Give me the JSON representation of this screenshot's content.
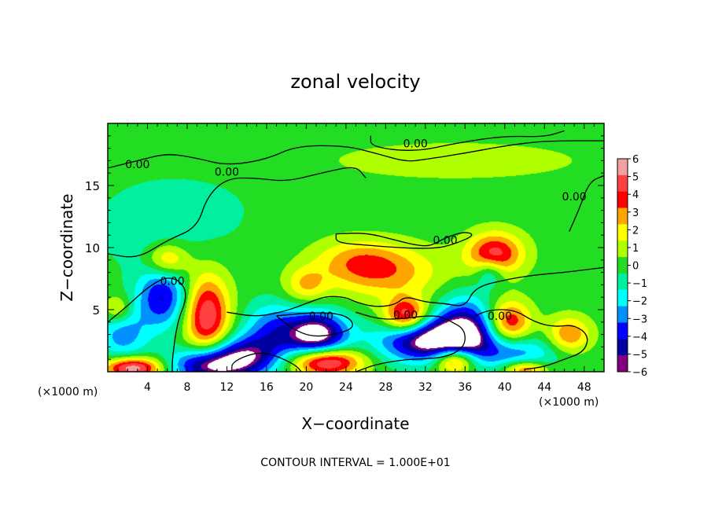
{
  "chart_data": {
    "type": "heatmap",
    "title": "zonal velocity",
    "xlabel": "X−coordinate",
    "ylabel": "Z−coordinate",
    "x_unit_left": "(×1000 m)",
    "x_unit_right": "(×1000 m)",
    "footer": "CONTOUR INTERVAL = 1.000E+01",
    "xlim": [
      0,
      50
    ],
    "ylim": [
      0,
      20
    ],
    "x_ticks": [
      4,
      8,
      12,
      16,
      20,
      24,
      28,
      32,
      36,
      40,
      44,
      48
    ],
    "x_tick_labels": [
      "4",
      "8",
      "12",
      "16",
      "20",
      "24",
      "28",
      "32",
      "36",
      "40",
      "44",
      "48"
    ],
    "y_ticks": [
      5,
      10,
      15
    ],
    "y_tick_labels": [
      "5",
      "10",
      "15"
    ],
    "colorbar": {
      "min": -6,
      "max": 6,
      "levels": [
        6,
        5,
        4,
        3,
        2,
        1,
        0,
        -1,
        -2,
        -3,
        -4,
        -5,
        -6
      ],
      "labels": [
        "6",
        "5",
        "4",
        "3",
        "2",
        "1",
        "0",
        "−1",
        "−2",
        "−3",
        "−4",
        "−5",
        "−6"
      ],
      "colors": [
        "#f4a0a0",
        "#ff4040",
        "#ff0000",
        "#ffa500",
        "#ffff00",
        "#b0ff00",
        "#22dd22",
        "#00f0a0",
        "#00ffff",
        "#0090ff",
        "#0000ff",
        "#0000a0",
        "#800080"
      ]
    },
    "contour_labels": [
      {
        "text": "0.00",
        "x": 3.0,
        "y": 16.7
      },
      {
        "text": "0.00",
        "x": 12.0,
        "y": 16.1
      },
      {
        "text": "0.00",
        "x": 31.0,
        "y": 18.4
      },
      {
        "text": "0.00",
        "x": 47.0,
        "y": 14.1
      },
      {
        "text": "0.00",
        "x": 34.0,
        "y": 10.6
      },
      {
        "text": "0.00",
        "x": 6.5,
        "y": 7.3
      },
      {
        "text": "0.00",
        "x": 21.5,
        "y": 4.5
      },
      {
        "text": "0.00",
        "x": 30.0,
        "y": 4.6
      },
      {
        "text": "0.00",
        "x": 39.5,
        "y": 4.5
      }
    ],
    "field_features": [
      {
        "v": -1.0,
        "x": 4.0,
        "y": 11.5,
        "sx": 4.0,
        "sy": 2.5
      },
      {
        "v": -0.6,
        "x": 10.0,
        "y": 13.0,
        "sx": 5.0,
        "sy": 2.5
      },
      {
        "v": -4.5,
        "x": 5.5,
        "y": 6.0,
        "sx": 1.8,
        "sy": 1.8
      },
      {
        "v": 3.5,
        "x": 6.0,
        "y": 9.0,
        "sx": 1.5,
        "sy": 1.0
      },
      {
        "v": -3.0,
        "x": 1.5,
        "y": 3.0,
        "sx": 1.8,
        "sy": 1.5
      },
      {
        "v": 2.5,
        "x": 1.0,
        "y": 5.0,
        "sx": 1.0,
        "sy": 0.8
      },
      {
        "v": 5.5,
        "x": 10.0,
        "y": 4.5,
        "sx": 1.6,
        "sy": 2.3
      },
      {
        "v": 6.5,
        "x": 2.5,
        "y": 0.3,
        "sx": 2.0,
        "sy": 0.6
      },
      {
        "v": -6.0,
        "x": 10.0,
        "y": 0.5,
        "sx": 2.5,
        "sy": 1.0
      },
      {
        "v": -5.0,
        "x": 14.0,
        "y": 1.2,
        "sx": 2.5,
        "sy": 1.2
      },
      {
        "v": -7.0,
        "x": 21.0,
        "y": 3.0,
        "sx": 2.2,
        "sy": 1.3
      },
      {
        "v": -3.0,
        "x": 16.5,
        "y": 3.5,
        "sx": 2.0,
        "sy": 1.5
      },
      {
        "v": 6.5,
        "x": 22.0,
        "y": 0.8,
        "sx": 2.5,
        "sy": 0.8
      },
      {
        "v": 3.0,
        "x": 28.0,
        "y": 8.0,
        "sx": 4.0,
        "sy": 1.5
      },
      {
        "v": 2.0,
        "x": 25.0,
        "y": 9.0,
        "sx": 3.0,
        "sy": 1.2
      },
      {
        "v": 2.5,
        "x": 20.0,
        "y": 7.0,
        "sx": 1.5,
        "sy": 1.0
      },
      {
        "v": -7.0,
        "x": 32.5,
        "y": 2.5,
        "sx": 3.5,
        "sy": 1.2
      },
      {
        "v": 5.5,
        "x": 30.0,
        "y": 4.5,
        "sx": 1.5,
        "sy": 1.0
      },
      {
        "v": -5.0,
        "x": 36.0,
        "y": 3.5,
        "sx": 2.0,
        "sy": 1.8
      },
      {
        "v": 5.0,
        "x": 39.0,
        "y": 9.5,
        "sx": 2.0,
        "sy": 1.2
      },
      {
        "v": 4.5,
        "x": 40.5,
        "y": 4.0,
        "sx": 1.5,
        "sy": 1.2
      },
      {
        "v": 3.5,
        "x": 46.5,
        "y": 3.0,
        "sx": 1.5,
        "sy": 1.0
      },
      {
        "v": 6.0,
        "x": 35.0,
        "y": 1.0,
        "sx": 1.5,
        "sy": 0.8
      },
      {
        "v": -3.0,
        "x": 41.0,
        "y": 1.5,
        "sx": 3.0,
        "sy": 1.0
      },
      {
        "v": -2.5,
        "x": 38.5,
        "y": 8.0,
        "sx": 1.0,
        "sy": 0.8
      },
      {
        "v": 4.0,
        "x": 42.0,
        "y": 0.2,
        "sx": 1.5,
        "sy": 0.5
      },
      {
        "v": 1.0,
        "x": 35.0,
        "y": 17.0,
        "sx": 10.0,
        "sy": 1.2
      }
    ],
    "zero_contours": [
      [
        [
          0,
          16.4
        ],
        [
          3,
          17.0
        ],
        [
          6,
          17.6
        ],
        [
          9,
          17.2
        ],
        [
          12,
          16.6
        ],
        [
          16,
          17.1
        ],
        [
          19,
          18.2
        ],
        [
          24,
          18.2
        ],
        [
          27,
          17.6
        ],
        [
          30,
          16.9
        ],
        [
          32,
          17.1
        ],
        [
          36,
          17.6
        ],
        [
          40,
          18.2
        ],
        [
          44,
          18.6
        ],
        [
          50,
          18.6
        ]
      ],
      [
        [
          0,
          9.5
        ],
        [
          3,
          9.1
        ],
        [
          6,
          10.6
        ],
        [
          9,
          11.6
        ],
        [
          10,
          14.1
        ],
        [
          12,
          15.6
        ],
        [
          15,
          15.6
        ],
        [
          18,
          15.3
        ],
        [
          22,
          16.1
        ],
        [
          25,
          16.6
        ],
        [
          26,
          15.6
        ]
      ],
      [
        [
          26.5,
          19.0
        ],
        [
          26.5,
          18.1
        ],
        [
          31,
          17.7
        ],
        [
          35,
          18.4
        ],
        [
          40,
          19.0
        ],
        [
          44,
          18.9
        ],
        [
          46,
          19.4
        ]
      ],
      [
        [
          46.5,
          11.3
        ],
        [
          47.5,
          13.1
        ],
        [
          48.5,
          15.3
        ],
        [
          50,
          15.8
        ]
      ],
      [
        [
          23,
          11.1
        ],
        [
          26,
          11.2
        ],
        [
          29,
          10.6
        ],
        [
          31,
          10.2
        ],
        [
          32.5,
          10.1
        ],
        [
          34,
          10.8
        ],
        [
          36,
          11.3
        ],
        [
          37,
          11.0
        ],
        [
          35,
          10.3
        ],
        [
          33,
          9.9
        ],
        [
          29,
          10.0
        ],
        [
          26,
          10.2
        ],
        [
          23,
          10.4
        ],
        [
          23,
          11.1
        ]
      ],
      [
        [
          0,
          4.0
        ],
        [
          2,
          5.3
        ],
        [
          4,
          6.8
        ],
        [
          6,
          7.7
        ],
        [
          7.5,
          7.2
        ],
        [
          8,
          6.0
        ],
        [
          7,
          4.0
        ],
        [
          6.5,
          1.0
        ],
        [
          6.5,
          0
        ]
      ],
      [
        [
          12,
          4.8
        ],
        [
          15,
          4.4
        ],
        [
          18,
          4.9
        ],
        [
          20,
          5.5
        ],
        [
          22,
          6.1
        ],
        [
          24,
          6.0
        ],
        [
          25,
          5.6
        ],
        [
          27,
          5.2
        ],
        [
          29,
          5.4
        ],
        [
          30,
          6.1
        ],
        [
          32,
          5.6
        ],
        [
          34,
          5.5
        ],
        [
          36,
          5.2
        ],
        [
          37,
          6.8
        ],
        [
          40,
          7.4
        ],
        [
          43,
          7.8
        ],
        [
          46,
          8.0
        ],
        [
          48,
          8.2
        ],
        [
          50,
          8.4
        ]
      ],
      [
        [
          25,
          4.8
        ],
        [
          27,
          4.3
        ],
        [
          29,
          4.2
        ],
        [
          33,
          4.6
        ],
        [
          34.5,
          4.1
        ],
        [
          36,
          3.4
        ],
        [
          36,
          2.0
        ],
        [
          34,
          1.1
        ],
        [
          30,
          1.0
        ],
        [
          27,
          0.6
        ],
        [
          25,
          0
        ]
      ],
      [
        [
          37,
          4.5
        ],
        [
          38.5,
          5.0
        ],
        [
          41,
          5.0
        ],
        [
          43,
          4.0
        ],
        [
          45,
          3.6
        ],
        [
          47,
          3.8
        ],
        [
          48.5,
          2.9
        ],
        [
          48,
          1.6
        ],
        [
          46,
          1.0
        ],
        [
          44,
          0.4
        ],
        [
          42,
          0.2
        ]
      ],
      [
        [
          17,
          4.5
        ],
        [
          18.5,
          3.5
        ],
        [
          20.5,
          2.8
        ],
        [
          23,
          3.0
        ],
        [
          25,
          3.6
        ],
        [
          24,
          4.6
        ],
        [
          21,
          4.8
        ],
        [
          17,
          4.5
        ]
      ],
      [
        [
          12.5,
          0
        ],
        [
          12.5,
          0.8
        ],
        [
          15,
          1.6
        ],
        [
          17,
          1.3
        ],
        [
          19,
          0.5
        ],
        [
          19.5,
          0
        ]
      ]
    ]
  }
}
